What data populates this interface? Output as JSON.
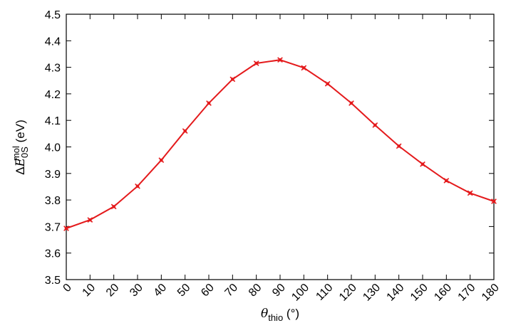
{
  "chart_data": {
    "type": "line",
    "title": "",
    "xlabel": {
      "symbol": "θ",
      "subscript": "thio",
      "unit": " (°)"
    },
    "ylabel": {
      "prefix": "Δ",
      "symbol": "E",
      "subscript": "0S",
      "superscript": "mol",
      "unit": " (eV)"
    },
    "xlim": [
      0,
      180
    ],
    "ylim": [
      3.5,
      4.5
    ],
    "xticks": [
      0,
      10,
      20,
      30,
      40,
      50,
      60,
      70,
      80,
      90,
      100,
      110,
      120,
      130,
      140,
      150,
      160,
      170,
      180
    ],
    "yticks": [
      "3.5",
      "3.6",
      "3.7",
      "3.8",
      "3.9",
      "4.0",
      "4.1",
      "4.2",
      "4.3",
      "4.4",
      "4.5"
    ],
    "grid": false,
    "series": [
      {
        "color": "#e41a1c",
        "marker": "x-square",
        "x": [
          0,
          10,
          20,
          30,
          40,
          50,
          60,
          70,
          80,
          90,
          100,
          110,
          120,
          130,
          140,
          150,
          160,
          170,
          180
        ],
        "y": [
          3.693,
          3.725,
          3.775,
          3.852,
          3.95,
          4.06,
          4.165,
          4.255,
          4.315,
          4.328,
          4.298,
          4.238,
          4.165,
          4.082,
          4.003,
          3.935,
          3.873,
          3.826,
          3.795
        ]
      }
    ]
  }
}
